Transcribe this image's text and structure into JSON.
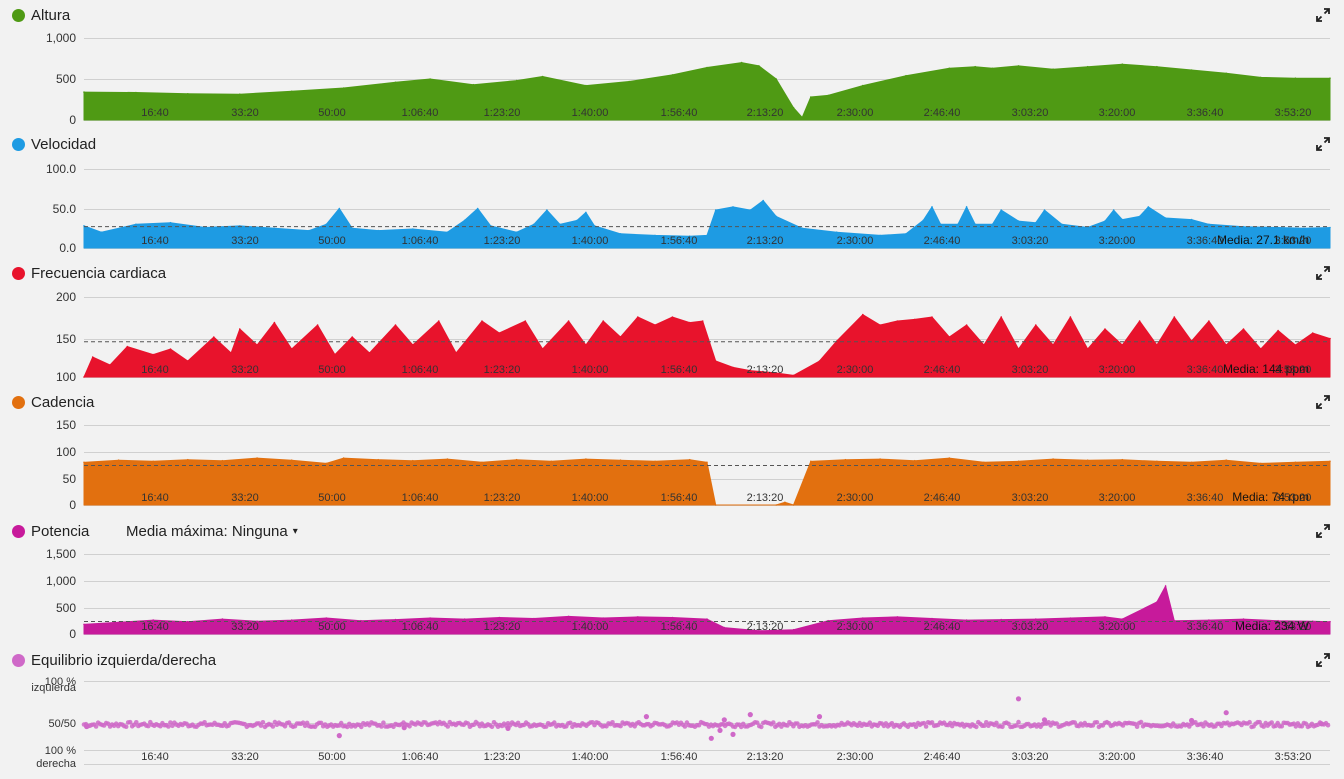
{
  "time_ticks": [
    "16:40",
    "33:20",
    "50:00",
    "1:06:40",
    "1:23:20",
    "1:40:00",
    "1:56:40",
    "2:13:20",
    "2:30:00",
    "2:46:40",
    "3:03:20",
    "3:20:00",
    "3:36:40",
    "3:53:20"
  ],
  "chart_data": [
    {
      "type": "area",
      "title": "Altura",
      "color": "#4f9a14",
      "yticks": [
        "1,000",
        "500",
        "0"
      ],
      "ylim": [
        0,
        1000
      ],
      "x_unit": "seconds",
      "points": [
        [
          0,
          340
        ],
        [
          600,
          335
        ],
        [
          1200,
          320
        ],
        [
          1800,
          315
        ],
        [
          2400,
          350
        ],
        [
          3000,
          390
        ],
        [
          3600,
          460
        ],
        [
          4000,
          500
        ],
        [
          4500,
          430
        ],
        [
          5000,
          480
        ],
        [
          5300,
          530
        ],
        [
          5800,
          420
        ],
        [
          6300,
          470
        ],
        [
          6800,
          550
        ],
        [
          7200,
          640
        ],
        [
          7600,
          700
        ],
        [
          7800,
          660
        ],
        [
          8000,
          500
        ],
        [
          8200,
          150
        ],
        [
          8300,
          30
        ],
        [
          8400,
          280
        ],
        [
          8600,
          300
        ],
        [
          9000,
          420
        ],
        [
          9500,
          540
        ],
        [
          10000,
          630
        ],
        [
          10300,
          650
        ],
        [
          10500,
          630
        ],
        [
          10800,
          660
        ],
        [
          11200,
          620
        ],
        [
          11600,
          650
        ],
        [
          12000,
          680
        ],
        [
          12400,
          650
        ],
        [
          12800,
          610
        ],
        [
          13200,
          570
        ],
        [
          13600,
          520
        ],
        [
          14000,
          510
        ],
        [
          14400,
          510
        ]
      ]
    },
    {
      "type": "area",
      "title": "Velocidad",
      "color": "#1e9be3",
      "yticks": [
        "100.0",
        "50.0",
        "0.0"
      ],
      "ylim": [
        0,
        100
      ],
      "mean": 27.1,
      "mean_label": "Media: 27.1 km/h",
      "x_unit": "seconds",
      "points": [
        [
          0,
          28
        ],
        [
          200,
          20
        ],
        [
          600,
          30
        ],
        [
          1000,
          32
        ],
        [
          1400,
          26
        ],
        [
          1800,
          28
        ],
        [
          2200,
          25
        ],
        [
          2600,
          22
        ],
        [
          2800,
          30
        ],
        [
          2950,
          50
        ],
        [
          3100,
          25
        ],
        [
          3400,
          22
        ],
        [
          3800,
          24
        ],
        [
          4200,
          20
        ],
        [
          4400,
          35
        ],
        [
          4550,
          50
        ],
        [
          4700,
          28
        ],
        [
          5000,
          20
        ],
        [
          5200,
          30
        ],
        [
          5350,
          48
        ],
        [
          5500,
          30
        ],
        [
          5700,
          35
        ],
        [
          5800,
          45
        ],
        [
          5900,
          28
        ],
        [
          6200,
          18
        ],
        [
          6600,
          16
        ],
        [
          7000,
          15
        ],
        [
          7200,
          16
        ],
        [
          7300,
          48
        ],
        [
          7500,
          52
        ],
        [
          7700,
          48
        ],
        [
          7850,
          60
        ],
        [
          8000,
          40
        ],
        [
          8300,
          25
        ],
        [
          8700,
          20
        ],
        [
          9200,
          16
        ],
        [
          9500,
          18
        ],
        [
          9700,
          35
        ],
        [
          9800,
          52
        ],
        [
          9900,
          30
        ],
        [
          10100,
          30
        ],
        [
          10200,
          52
        ],
        [
          10300,
          30
        ],
        [
          10500,
          30
        ],
        [
          10600,
          48
        ],
        [
          10800,
          34
        ],
        [
          11000,
          32
        ],
        [
          11100,
          48
        ],
        [
          11300,
          30
        ],
        [
          11600,
          26
        ],
        [
          11800,
          34
        ],
        [
          11900,
          48
        ],
        [
          12000,
          36
        ],
        [
          12200,
          40
        ],
        [
          12300,
          52
        ],
        [
          12500,
          38
        ],
        [
          12800,
          36
        ],
        [
          13000,
          30
        ],
        [
          13400,
          27
        ],
        [
          13800,
          26
        ],
        [
          14100,
          25
        ],
        [
          14400,
          26
        ]
      ]
    },
    {
      "type": "area",
      "title": "Frecuencia cardiaca",
      "color": "#e8132c",
      "yticks": [
        "200",
        "150",
        "100"
      ],
      "ylim": [
        100,
        200
      ],
      "mean": 144,
      "mean_label": "Media: 144 ppm",
      "x_unit": "seconds",
      "points": [
        [
          0,
          100
        ],
        [
          100,
          125
        ],
        [
          300,
          115
        ],
        [
          500,
          138
        ],
        [
          800,
          128
        ],
        [
          1000,
          135
        ],
        [
          1200,
          120
        ],
        [
          1500,
          150
        ],
        [
          1700,
          130
        ],
        [
          1800,
          160
        ],
        [
          2000,
          140
        ],
        [
          2200,
          168
        ],
        [
          2400,
          135
        ],
        [
          2700,
          165
        ],
        [
          2900,
          128
        ],
        [
          3100,
          150
        ],
        [
          3300,
          130
        ],
        [
          3600,
          165
        ],
        [
          3800,
          140
        ],
        [
          4100,
          170
        ],
        [
          4300,
          130
        ],
        [
          4600,
          170
        ],
        [
          4800,
          155
        ],
        [
          5100,
          170
        ],
        [
          5300,
          135
        ],
        [
          5600,
          170
        ],
        [
          5800,
          140
        ],
        [
          6000,
          170
        ],
        [
          6200,
          150
        ],
        [
          6400,
          175
        ],
        [
          6600,
          165
        ],
        [
          6800,
          175
        ],
        [
          7000,
          168
        ],
        [
          7150,
          170
        ],
        [
          7300,
          120
        ],
        [
          7500,
          112
        ],
        [
          7700,
          108
        ],
        [
          8000,
          105
        ],
        [
          8200,
          102
        ],
        [
          8500,
          120
        ],
        [
          8700,
          145
        ],
        [
          9000,
          178
        ],
        [
          9200,
          165
        ],
        [
          9400,
          170
        ],
        [
          9600,
          172
        ],
        [
          9800,
          175
        ],
        [
          10000,
          150
        ],
        [
          10200,
          165
        ],
        [
          10400,
          140
        ],
        [
          10600,
          175
        ],
        [
          10800,
          135
        ],
        [
          11000,
          165
        ],
        [
          11200,
          140
        ],
        [
          11400,
          175
        ],
        [
          11600,
          135
        ],
        [
          11800,
          160
        ],
        [
          12000,
          140
        ],
        [
          12200,
          170
        ],
        [
          12400,
          140
        ],
        [
          12600,
          175
        ],
        [
          12800,
          145
        ],
        [
          13000,
          170
        ],
        [
          13200,
          140
        ],
        [
          13400,
          160
        ],
        [
          13600,
          135
        ],
        [
          13800,
          158
        ],
        [
          14000,
          140
        ],
        [
          14200,
          155
        ],
        [
          14400,
          148
        ]
      ]
    },
    {
      "type": "area",
      "title": "Cadencia",
      "color": "#e2700f",
      "yticks": [
        "150",
        "100",
        "50",
        "0"
      ],
      "ylim": [
        0,
        150
      ],
      "mean": 74,
      "mean_label": "Media: 74 rpm",
      "x_unit": "seconds",
      "points": [
        [
          0,
          80
        ],
        [
          400,
          84
        ],
        [
          800,
          82
        ],
        [
          1200,
          85
        ],
        [
          1600,
          83
        ],
        [
          2000,
          88
        ],
        [
          2400,
          84
        ],
        [
          2800,
          78
        ],
        [
          3000,
          88
        ],
        [
          3400,
          85
        ],
        [
          3800,
          83
        ],
        [
          4200,
          86
        ],
        [
          4600,
          80
        ],
        [
          5000,
          85
        ],
        [
          5400,
          82
        ],
        [
          5800,
          86
        ],
        [
          6200,
          84
        ],
        [
          6600,
          82
        ],
        [
          7000,
          85
        ],
        [
          7200,
          80
        ],
        [
          7300,
          0
        ],
        [
          8000,
          0
        ],
        [
          8100,
          5
        ],
        [
          8200,
          0
        ],
        [
          8400,
          82
        ],
        [
          8800,
          85
        ],
        [
          9200,
          86
        ],
        [
          9600,
          83
        ],
        [
          10000,
          88
        ],
        [
          10400,
          80
        ],
        [
          10800,
          82
        ],
        [
          11200,
          86
        ],
        [
          11600,
          84
        ],
        [
          12000,
          85
        ],
        [
          12400,
          82
        ],
        [
          12800,
          80
        ],
        [
          13200,
          84
        ],
        [
          13600,
          78
        ],
        [
          14000,
          80
        ],
        [
          14400,
          82
        ]
      ]
    },
    {
      "type": "area",
      "title": "Potencia",
      "max_avg_label": "Media máxima: Ninguna",
      "color": "#c71a9b",
      "yticks": [
        "1,500",
        "1,000",
        "500",
        "0"
      ],
      "ylim": [
        0,
        1500
      ],
      "mean": 234,
      "mean_label": "Media: 234 W",
      "x_unit": "seconds",
      "points": [
        [
          0,
          180
        ],
        [
          400,
          220
        ],
        [
          800,
          260
        ],
        [
          1200,
          230
        ],
        [
          1600,
          280
        ],
        [
          2000,
          240
        ],
        [
          2400,
          260
        ],
        [
          2800,
          300
        ],
        [
          3200,
          250
        ],
        [
          3600,
          270
        ],
        [
          4000,
          300
        ],
        [
          4400,
          280
        ],
        [
          4800,
          310
        ],
        [
          5200,
          290
        ],
        [
          5600,
          330
        ],
        [
          6000,
          300
        ],
        [
          6400,
          320
        ],
        [
          6800,
          310
        ],
        [
          7200,
          280
        ],
        [
          7400,
          120
        ],
        [
          7800,
          60
        ],
        [
          8200,
          80
        ],
        [
          8600,
          250
        ],
        [
          9000,
          300
        ],
        [
          9400,
          320
        ],
        [
          9800,
          290
        ],
        [
          10200,
          260
        ],
        [
          10600,
          270
        ],
        [
          11000,
          280
        ],
        [
          11400,
          300
        ],
        [
          11800,
          320
        ],
        [
          12000,
          280
        ],
        [
          12400,
          600
        ],
        [
          12500,
          900
        ],
        [
          12600,
          250
        ],
        [
          13000,
          260
        ],
        [
          13400,
          280
        ],
        [
          13800,
          250
        ],
        [
          14200,
          240
        ],
        [
          14400,
          230
        ]
      ]
    },
    {
      "type": "scatter",
      "title": "Equilibrio izquierda/derecha",
      "color": "#cf69c8",
      "yticks": [
        "100 %",
        "izquierda",
        "50/50",
        "100 %",
        "derecha"
      ],
      "ylim": [
        100,
        -100
      ],
      "x_unit": "seconds",
      "points": [
        [
          30,
          5
        ],
        [
          2950,
          28
        ],
        [
          7250,
          35
        ],
        [
          7350,
          15
        ],
        [
          7500,
          25
        ],
        [
          7400,
          -12
        ],
        [
          7700,
          -25
        ],
        [
          6500,
          -20
        ],
        [
          11100,
          -12
        ],
        [
          12800,
          -10
        ],
        [
          13200,
          -30
        ],
        [
          10800,
          -65
        ],
        [
          8500,
          -20
        ],
        [
          3700,
          8
        ],
        [
          4900,
          10
        ],
        [
          14300,
          -2
        ]
      ]
    }
  ]
}
